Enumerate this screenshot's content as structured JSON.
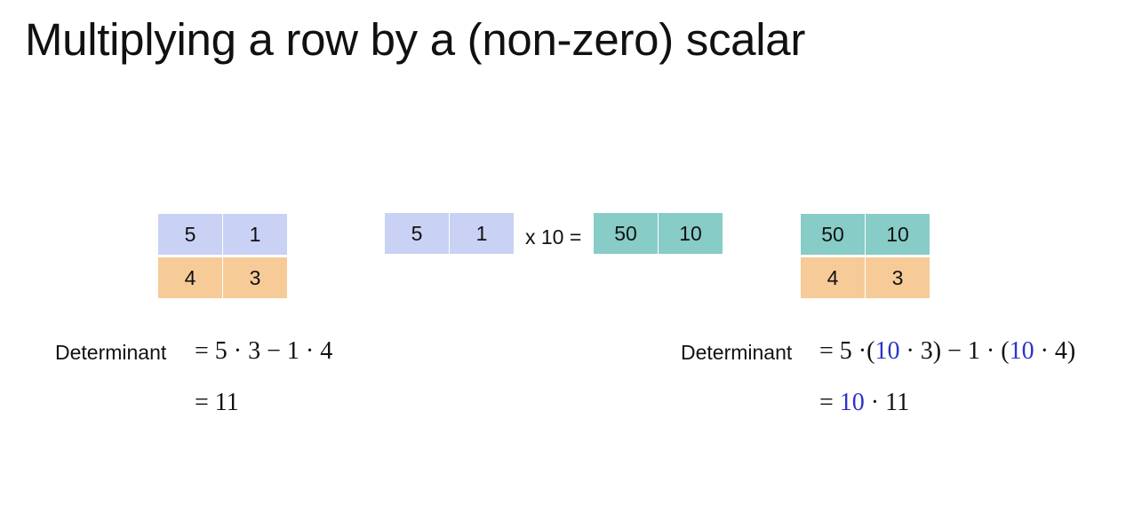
{
  "slide": {
    "title": "Multiplying a row by a (non-zero) scalar"
  },
  "colors": {
    "row_original": "#c9d2f4",
    "row_second": "#f6cb97",
    "row_scaled": "#87ccc6",
    "highlight": "#2b33c9"
  },
  "left_matrix": {
    "rows": [
      [
        "5",
        "1"
      ],
      [
        "4",
        "3"
      ]
    ]
  },
  "middle": {
    "row_in": [
      "5",
      "1"
    ],
    "operator": "x 10 =",
    "row_out": [
      "50",
      "10"
    ]
  },
  "right_matrix": {
    "rows": [
      [
        "50",
        "10"
      ],
      [
        "4",
        "3"
      ]
    ]
  },
  "left_det": {
    "label": "Determinant",
    "line1": {
      "eq": "=",
      "a": "5",
      "dot1": "·",
      "b": "3",
      "minus": "−",
      "c": "1",
      "dot2": "·",
      "d": "4"
    },
    "line2": {
      "eq": "=",
      "value": "11"
    }
  },
  "right_det": {
    "label": "Determinant",
    "line1": {
      "eq": "=",
      "a": "5",
      "dot1": "·",
      "open1": "(",
      "k1": "10",
      "dot2": "·",
      "b": "3",
      "close1": ")",
      "minus": "−",
      "c": "1",
      "dot3": "·",
      "open2": "(",
      "k2": "10",
      "dot4": "·",
      "d": "4",
      "close2": ")"
    },
    "line2": {
      "eq": "=",
      "k": "10",
      "dot": "·",
      "value": "11"
    }
  }
}
